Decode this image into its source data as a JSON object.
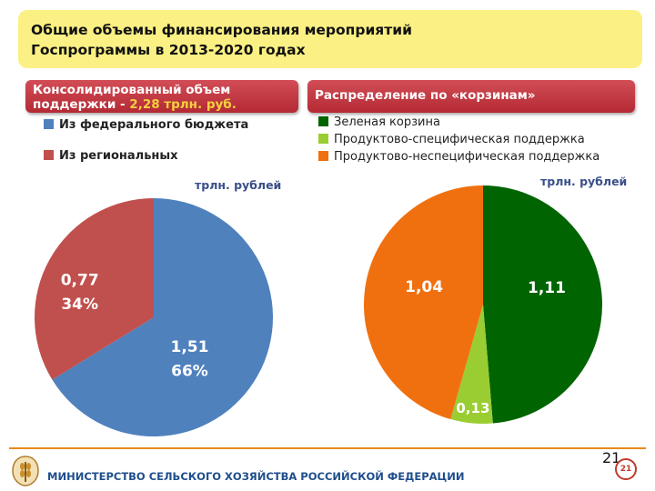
{
  "title": {
    "line1": "Общие объемы финансирования мероприятий",
    "line2": "Госпрограммы в 2013-2020 годах"
  },
  "left_panel": {
    "header_line1": "Консолидированный объем",
    "header_line2_prefix": "поддержки - ",
    "header_highlight": "2,28 трлн. руб.",
    "legend": [
      {
        "label": "Из федерального бюджета",
        "color": "#4f81bd"
      },
      {
        "label": "Из региональных",
        "color": "#c0504d"
      }
    ],
    "unit": "трлн. рублей"
  },
  "right_panel": {
    "header": "Распределение по «корзинам»",
    "legend": [
      {
        "label": "Зеленая корзина",
        "color": "#006400"
      },
      {
        "label": "Продуктово-специфическая поддержка",
        "color": "#9acd32"
      },
      {
        "label": "Продуктово-неспецифическая поддержка",
        "color": "#f07010"
      }
    ],
    "unit": "трлн. рублей"
  },
  "chart_data": [
    {
      "type": "pie",
      "title": "",
      "series": [
        {
          "name": "Из федерального бюджета",
          "value": 1.51,
          "value_label": "1,51",
          "percent_label": "66%",
          "color": "#4f81bd"
        },
        {
          "name": "Из региональных",
          "value": 0.77,
          "value_label": "0,77",
          "percent_label": "34%",
          "color": "#c0504d"
        }
      ],
      "start_angle_deg": 0,
      "direction": "clockwise"
    },
    {
      "type": "pie",
      "title": "",
      "series": [
        {
          "name": "Зеленая корзина",
          "value": 1.11,
          "value_label": "1,11",
          "color": "#006400"
        },
        {
          "name": "Продуктово-специфическая поддержка",
          "value": 0.13,
          "value_label": "0,13",
          "color": "#9acd32"
        },
        {
          "name": "Продуктово-неспецифическая поддержка",
          "value": 1.04,
          "value_label": "1,04",
          "color": "#f07010"
        }
      ],
      "start_angle_deg": 0,
      "direction": "clockwise"
    }
  ],
  "footer": {
    "ministry": "МИНИСТЕРСТВО СЕЛЬСКОГО ХОЗЯЙСТВА РОССИЙСКОЙ ФЕДЕРАЦИИ",
    "page_number": "21",
    "page_badge": "21"
  }
}
